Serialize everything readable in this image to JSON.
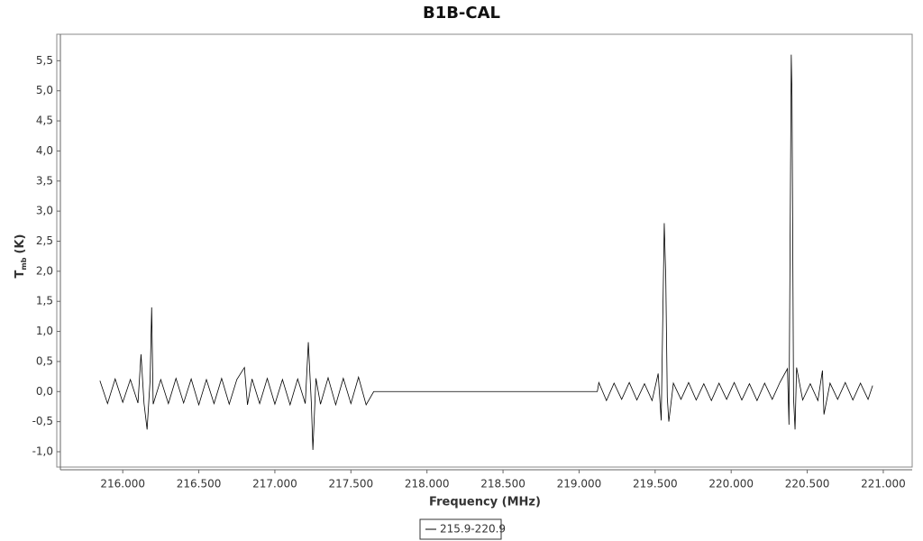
{
  "chart_data": {
    "type": "line",
    "title": "B1B-CAL",
    "xlabel": "Frequency (MHz)",
    "ylabel": "T",
    "ylabel_sub": "mb",
    "ylabel_unit": "(K)",
    "xlim": [
      215.59,
      221.19
    ],
    "ylim": [
      -1.3,
      5.94
    ],
    "xticks": [
      {
        "value": 216,
        "label": "216.000"
      },
      {
        "value": 216.5,
        "label": "216.500"
      },
      {
        "value": 217,
        "label": "217.000"
      },
      {
        "value": 217.5,
        "label": "217.500"
      },
      {
        "value": 218,
        "label": "218.000"
      },
      {
        "value": 218.5,
        "label": "218.500"
      },
      {
        "value": 219,
        "label": "219.000"
      },
      {
        "value": 219.5,
        "label": "219.500"
      },
      {
        "value": 220,
        "label": "220.000"
      },
      {
        "value": 220.5,
        "label": "220.500"
      },
      {
        "value": 221,
        "label": "221.000"
      }
    ],
    "yticks": [
      {
        "value": -1,
        "label": "-1,0"
      },
      {
        "value": -0.5,
        "label": "-0,5"
      },
      {
        "value": 0,
        "label": "0,0"
      },
      {
        "value": 0.5,
        "label": "0,5"
      },
      {
        "value": 1,
        "label": "1,0"
      },
      {
        "value": 1.5,
        "label": "1,5"
      },
      {
        "value": 2,
        "label": "2,0"
      },
      {
        "value": 2.5,
        "label": "2,5"
      },
      {
        "value": 3,
        "label": "3,0"
      },
      {
        "value": 3.5,
        "label": "3,5"
      },
      {
        "value": 4,
        "label": "4,0"
      },
      {
        "value": 4.5,
        "label": "4,5"
      },
      {
        "value": 5,
        "label": "5,0"
      },
      {
        "value": 5.5,
        "label": "5,5"
      }
    ],
    "grid": false,
    "legend": "bottom",
    "x": [
      215.85,
      215.9,
      215.95,
      216.0,
      216.05,
      216.1,
      216.12,
      216.14,
      216.16,
      216.18,
      216.19,
      216.2,
      216.25,
      216.3,
      216.35,
      216.4,
      216.45,
      216.5,
      216.55,
      216.6,
      216.65,
      216.7,
      216.75,
      216.8,
      216.82,
      216.85,
      216.9,
      216.95,
      217.0,
      217.05,
      217.1,
      217.15,
      217.2,
      217.22,
      217.24,
      217.25,
      217.27,
      217.3,
      217.35,
      217.4,
      217.45,
      217.5,
      217.55,
      217.6,
      217.65,
      219.12,
      219.13,
      219.18,
      219.23,
      219.28,
      219.33,
      219.38,
      219.43,
      219.48,
      219.52,
      219.54,
      219.56,
      219.57,
      219.58,
      219.59,
      219.62,
      219.67,
      219.72,
      219.77,
      219.82,
      219.87,
      219.92,
      219.97,
      220.02,
      220.07,
      220.12,
      220.17,
      220.22,
      220.27,
      220.32,
      220.37,
      220.38,
      220.395,
      220.4,
      220.41,
      220.42,
      220.43,
      220.47,
      220.52,
      220.57,
      220.6,
      220.61,
      220.65,
      220.7,
      220.75,
      220.8,
      220.85,
      220.9,
      220.93
    ],
    "series": [
      {
        "name": "215.9-220.9",
        "color": "#000000",
        "values": [
          0.18,
          -0.2,
          0.21,
          -0.18,
          0.2,
          -0.19,
          0.62,
          -0.2,
          -0.63,
          0.2,
          1.4,
          -0.21,
          0.2,
          -0.2,
          0.22,
          -0.19,
          0.21,
          -0.22,
          0.2,
          -0.2,
          0.22,
          -0.21,
          0.2,
          0.4,
          -0.22,
          0.21,
          -0.2,
          0.22,
          -0.21,
          0.2,
          -0.22,
          0.21,
          -0.2,
          0.82,
          -0.2,
          -0.97,
          0.22,
          -0.21,
          0.23,
          -0.22,
          0.22,
          -0.2,
          0.24,
          -0.22,
          0.0,
          0.0,
          0.15,
          -0.15,
          0.14,
          -0.13,
          0.15,
          -0.14,
          0.13,
          -0.15,
          0.3,
          -0.48,
          2.8,
          1.9,
          -0.1,
          -0.5,
          0.14,
          -0.13,
          0.15,
          -0.14,
          0.13,
          -0.15,
          0.14,
          -0.13,
          0.15,
          -0.14,
          0.13,
          -0.15,
          0.14,
          -0.13,
          0.15,
          0.38,
          -0.55,
          5.6,
          4.9,
          -0.1,
          -0.63,
          0.4,
          -0.14,
          0.13,
          -0.15,
          0.35,
          -0.38,
          0.14,
          -0.13,
          0.15,
          -0.14,
          0.14,
          -0.13,
          0.1
        ]
      }
    ]
  }
}
